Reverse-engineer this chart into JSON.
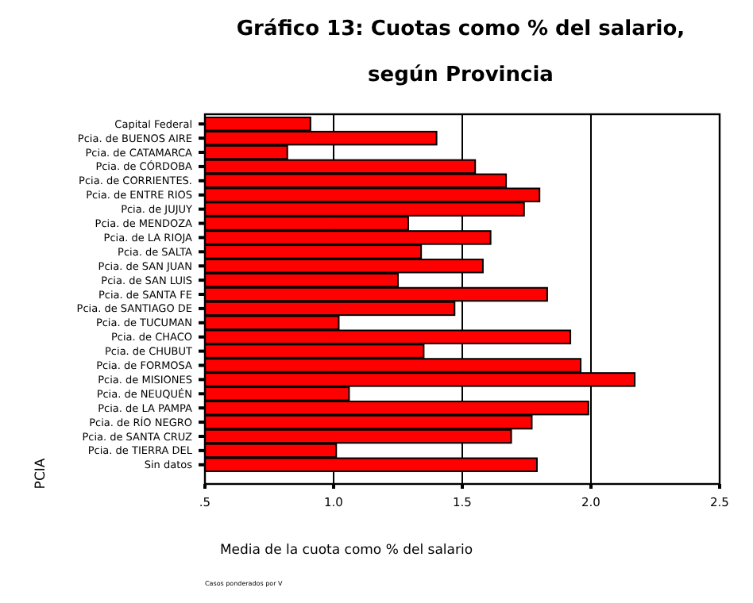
{
  "chart_data": {
    "type": "bar",
    "orientation": "horizontal",
    "title": "Gráfico 13: Cuotas como % del salario,",
    "subtitle": "según Provincia",
    "xlabel": "Media de la cuota como % del salario",
    "ylabel": "PCIA",
    "categories": [
      "Capital Federal",
      "Pcia. de BUENOS AIRE",
      "Pcia. de CATAMARCA",
      "Pcia. de CÓRDOBA",
      "Pcia. de CORRIENTES.",
      "Pcia. de ENTRE RIOS",
      "Pcia. de JUJUY",
      "Pcia. de MENDOZA",
      "Pcia. de LA RIOJA",
      "Pcia. de SALTA",
      "Pcia. de SAN JUAN",
      "Pcia. de SAN LUIS",
      "Pcia. de SANTA FE",
      "Pcia. de SANTIAGO DE",
      "Pcia. de TUCUMAN",
      "Pcia. de CHACO",
      "Pcia. de CHUBUT",
      "Pcia. de FORMOSA",
      "Pcia. de MISIONES",
      "Pcia. de NEUQUÉN",
      "Pcia. de LA PAMPA",
      "Pcia. de RÍO NEGRO",
      "Pcia. de SANTA CRUZ",
      "Pcia. de TIERRA DEL",
      "Sin datos"
    ],
    "values": [
      0.91,
      1.4,
      0.82,
      1.55,
      1.67,
      1.8,
      1.74,
      1.29,
      1.61,
      1.34,
      1.58,
      1.25,
      1.83,
      1.47,
      1.02,
      1.92,
      1.35,
      1.96,
      2.17,
      1.06,
      1.99,
      1.77,
      1.69,
      1.01,
      1.79
    ],
    "color": "#ff0000",
    "xlim": [
      0.5,
      2.5
    ],
    "xticks": [
      {
        "value": 0.5,
        "label": ".5"
      },
      {
        "value": 1,
        "label": "1.0"
      },
      {
        "value": 1.5,
        "label": "1.5"
      },
      {
        "value": 2,
        "label": "2.0"
      },
      {
        "value": 2.5,
        "label": "2.5"
      }
    ],
    "grid": "x",
    "annotations": [
      "Casos ponderados por V"
    ]
  }
}
